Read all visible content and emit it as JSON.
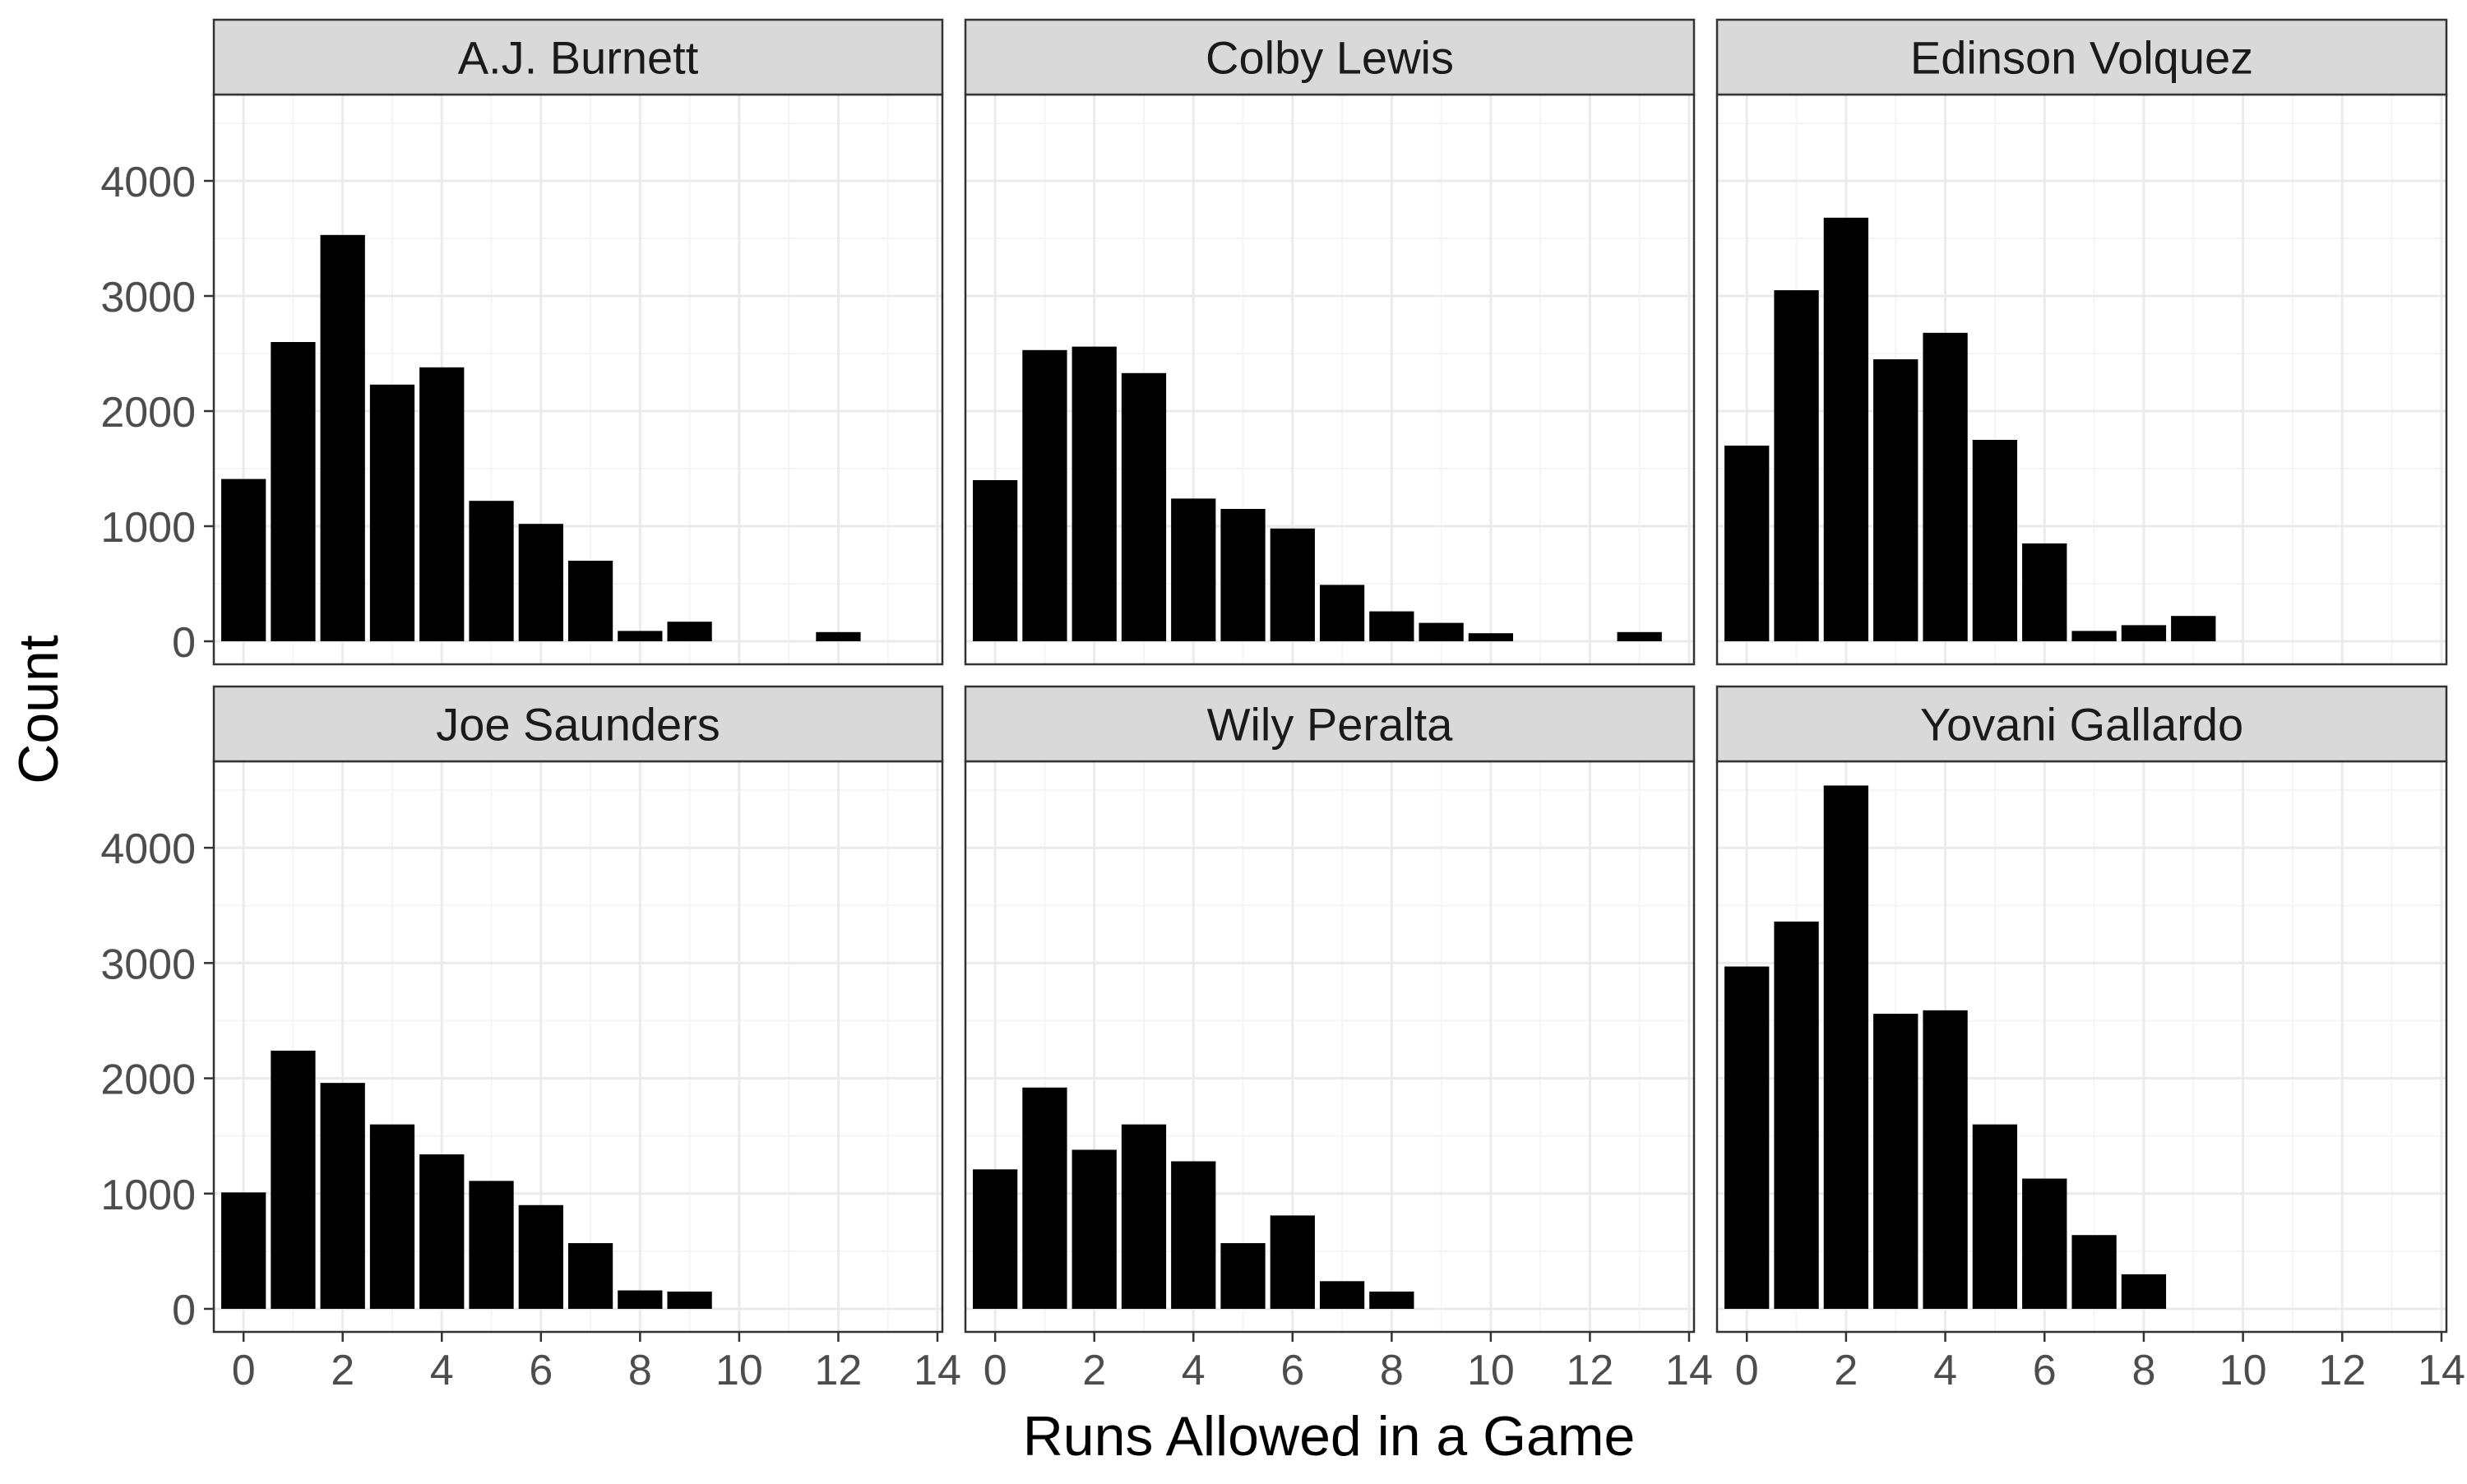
{
  "chart_data": {
    "type": "bar",
    "layout": "facet-grid-2x3",
    "xlabel": "Runs Allowed in a Game",
    "ylabel": "Count",
    "xlim": [
      -0.6,
      14.1
    ],
    "ylim": [
      -200,
      4750
    ],
    "x_ticks": [
      0,
      2,
      4,
      6,
      8,
      10,
      12,
      14
    ],
    "y_ticks": [
      0,
      1000,
      2000,
      3000,
      4000
    ],
    "grid": true,
    "bar_color": "#000000",
    "strip_color": "#d9d9d9",
    "grid_major_color": "#ebebeb",
    "grid_minor_color": "#f5f5f5",
    "panels": [
      {
        "title": "A.J. Burnett",
        "x": [
          0,
          1,
          2,
          3,
          4,
          5,
          6,
          7,
          8,
          9,
          12
        ],
        "values": [
          1410,
          2600,
          3530,
          2230,
          2380,
          1220,
          1020,
          700,
          90,
          170,
          80
        ]
      },
      {
        "title": "Colby Lewis",
        "x": [
          0,
          1,
          2,
          3,
          4,
          5,
          6,
          7,
          8,
          9,
          10,
          13
        ],
        "values": [
          1400,
          2530,
          2560,
          2330,
          1240,
          1150,
          980,
          490,
          260,
          160,
          70,
          80
        ]
      },
      {
        "title": "Edinson Volquez",
        "x": [
          0,
          1,
          2,
          3,
          4,
          5,
          6,
          7,
          8,
          9
        ],
        "values": [
          1700,
          3050,
          3680,
          2450,
          2680,
          1750,
          850,
          90,
          140,
          220
        ]
      },
      {
        "title": "Joe Saunders",
        "x": [
          0,
          1,
          2,
          3,
          4,
          5,
          6,
          7,
          8,
          9
        ],
        "values": [
          1010,
          2240,
          1960,
          1600,
          1340,
          1110,
          900,
          570,
          160,
          150
        ]
      },
      {
        "title": "Wily Peralta",
        "x": [
          0,
          1,
          2,
          3,
          4,
          5,
          6,
          7,
          8
        ],
        "values": [
          1210,
          1920,
          1380,
          1600,
          1280,
          570,
          810,
          240,
          150
        ]
      },
      {
        "title": "Yovani Gallardo",
        "x": [
          0,
          1,
          2,
          3,
          4,
          5,
          6,
          7,
          8
        ],
        "values": [
          2970,
          3360,
          4540,
          2560,
          2590,
          1600,
          1130,
          640,
          300
        ]
      }
    ]
  }
}
